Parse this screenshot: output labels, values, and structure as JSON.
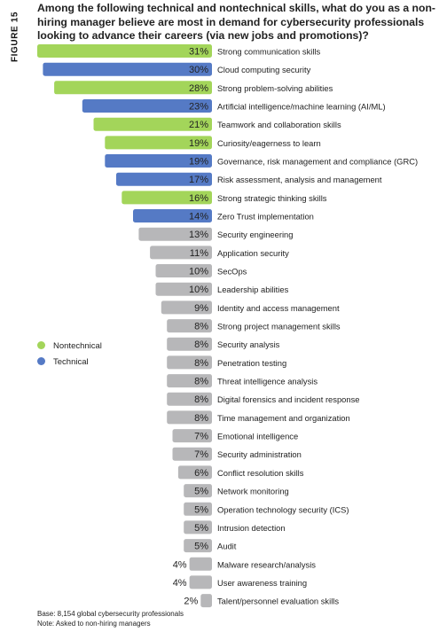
{
  "figure_label": "FIGURE 15",
  "title": "Among the following technical and nontechnical skills, what do you as a non-hiring manager believe are most in demand for cybersecurity professionals looking to advance their careers (via new jobs and promotions)?",
  "legend": [
    {
      "label": "Nontechnical",
      "color": "#a3d55a"
    },
    {
      "label": "Technical",
      "color": "#557ac5"
    }
  ],
  "colors": {
    "nontechnical": "#a3d55a",
    "technical": "#557ac5",
    "other": "#b7b7b9"
  },
  "footnotes": {
    "base": "Base: 8,154 global cybersecurity professionals",
    "note": "Note: Asked to non-hiring managers"
  },
  "chart_data": {
    "type": "bar",
    "orientation": "horizontal",
    "categories": [
      "Strong communication skills",
      "Cloud computing security",
      "Strong problem-solving abilities",
      "Artificial intelligence/machine learning (AI/ML)",
      "Teamwork and collaboration skills",
      "Curiosity/eagerness to learn",
      "Governance, risk management and compliance (GRC)",
      "Risk assessment, analysis and management",
      "Strong strategic thinking skills",
      "Zero Trust implementation",
      "Security engineering",
      "Application security",
      "SecOps",
      "Leadership abilities",
      "Identity and access management",
      "Strong project management skills",
      "Security analysis",
      "Penetration testing",
      "Threat intelligence analysis",
      "Digital forensics and incident response",
      "Time management and organization",
      "Emotional intelligence",
      "Security administration",
      "Conflict resolution skills",
      "Network monitoring",
      "Operation technology security (ICS)",
      "Intrusion detection",
      "Audit",
      "Malware research/analysis",
      "User awareness training",
      "Talent/personnel evaluation skills"
    ],
    "values": [
      31,
      30,
      28,
      23,
      21,
      19,
      19,
      17,
      16,
      14,
      13,
      11,
      10,
      10,
      9,
      8,
      8,
      8,
      8,
      8,
      8,
      7,
      7,
      6,
      5,
      5,
      5,
      5,
      4,
      4,
      2
    ],
    "value_labels": [
      "31%",
      "30%",
      "28%",
      "23%",
      "21%",
      "19%",
      "19%",
      "17%",
      "16%",
      "14%",
      "13%",
      "11%",
      "10%",
      "10%",
      "9%",
      "8%",
      "8%",
      "8%",
      "8%",
      "8%",
      "8%",
      "7%",
      "7%",
      "6%",
      "5%",
      "5%",
      "5%",
      "5%",
      "4%",
      "4%",
      "2%"
    ],
    "groups": [
      "nontechnical",
      "technical",
      "nontechnical",
      "technical",
      "nontechnical",
      "nontechnical",
      "technical",
      "technical",
      "nontechnical",
      "technical",
      "other",
      "other",
      "other",
      "other",
      "other",
      "other",
      "other",
      "other",
      "other",
      "other",
      "other",
      "other",
      "other",
      "other",
      "other",
      "other",
      "other",
      "other",
      "other",
      "other",
      "other"
    ],
    "xlim": [
      0,
      31
    ],
    "grid": false,
    "legend_position": "left-middle"
  }
}
